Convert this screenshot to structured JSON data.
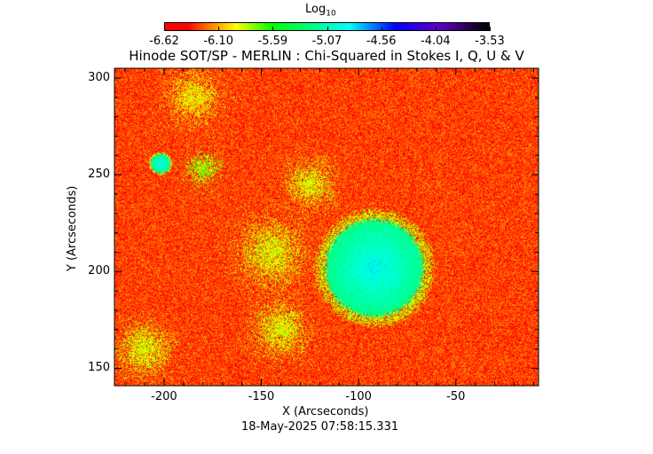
{
  "chart_data": {
    "type": "heatmap",
    "title": "Hinode SOT/SP - MERLIN : Chi-Squared in Stokes I, Q, U & V",
    "colorbar": {
      "label_base": "Log",
      "label_sub": "10",
      "range": [
        -6.62,
        -3.53
      ],
      "tick_labels": [
        "-6.62",
        "-6.10",
        "-5.59",
        "-5.07",
        "-4.56",
        "-4.04",
        "-3.53"
      ],
      "colormap": [
        "#ff0000",
        "#ff8000",
        "#ffff00",
        "#00ff00",
        "#00ffff",
        "#0000ff",
        "#6000c0",
        "#000000"
      ]
    },
    "xlabel": "X (Arcseconds)",
    "ylabel": "Y (Arcseconds)",
    "xlim": [
      -225.5,
      -7.5
    ],
    "ylim": [
      141,
      305
    ],
    "xticks": [
      {
        "v": -200,
        "label": "-200"
      },
      {
        "v": -150,
        "label": "-150"
      },
      {
        "v": -100,
        "label": "-100"
      },
      {
        "v": -50,
        "label": "-50"
      }
    ],
    "yticks": [
      {
        "v": 150,
        "label": "150"
      },
      {
        "v": 200,
        "label": "200"
      },
      {
        "v": 250,
        "label": "250"
      },
      {
        "v": 300,
        "label": "300"
      }
    ],
    "background_level": -6.3,
    "features": [
      {
        "kind": "sunspot",
        "x": -92,
        "y": 202,
        "radius": 25,
        "level": -5.2
      },
      {
        "kind": "pore",
        "x": -202,
        "y": 256,
        "radius": 5,
        "level": -5.2
      },
      {
        "kind": "network",
        "x": -180,
        "y": 253,
        "radius": 5,
        "level": -5.8
      },
      {
        "kind": "network",
        "x": -145,
        "y": 210,
        "radius": 10,
        "level": -5.9
      },
      {
        "kind": "network",
        "x": -140,
        "y": 170,
        "radius": 8,
        "level": -5.9
      },
      {
        "kind": "network",
        "x": -125,
        "y": 245,
        "radius": 7,
        "level": -5.9
      },
      {
        "kind": "network",
        "x": -210,
        "y": 160,
        "radius": 8,
        "level": -5.9
      },
      {
        "kind": "network",
        "x": -185,
        "y": 290,
        "radius": 8,
        "level": -5.95
      }
    ],
    "timestamp": "18-May-2025 07:58:15.331"
  }
}
